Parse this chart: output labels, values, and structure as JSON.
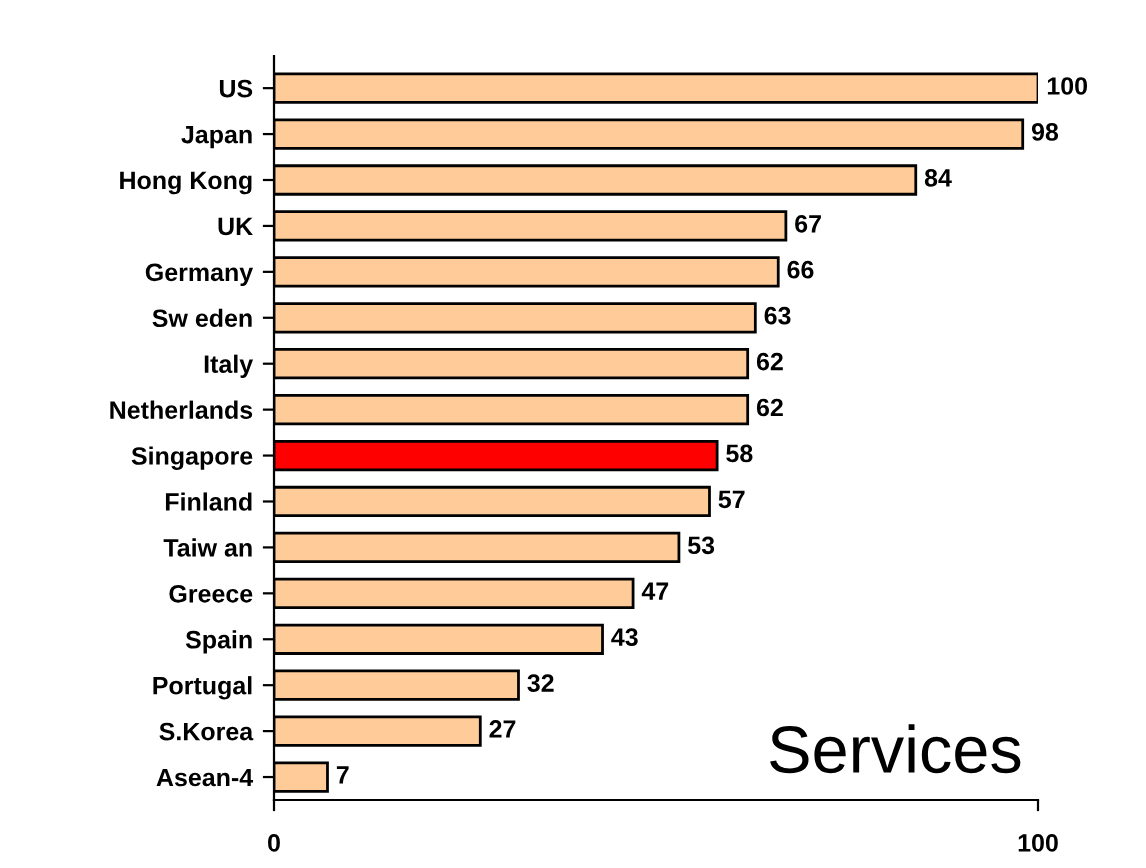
{
  "chart_data": {
    "type": "bar",
    "orientation": "horizontal",
    "categories": [
      "US",
      "Japan",
      "Hong Kong",
      "UK",
      "Germany",
      "Sw eden",
      "Italy",
      "Netherlands",
      "Singapore",
      "Finland",
      "Taiw an",
      "Greece",
      "Spain",
      "Portugal",
      "S.Korea",
      "Asean-4"
    ],
    "values": [
      100,
      98,
      84,
      67,
      66,
      63,
      62,
      62,
      58,
      57,
      53,
      47,
      43,
      32,
      27,
      7
    ],
    "colors": [
      "#ffcc99",
      "#ffcc99",
      "#ffcc99",
      "#ffcc99",
      "#ffcc99",
      "#ffcc99",
      "#ffcc99",
      "#ffcc99",
      "#ff0000",
      "#ffcc99",
      "#ffcc99",
      "#ffcc99",
      "#ffcc99",
      "#ffcc99",
      "#ffcc99",
      "#ffcc99"
    ],
    "xlim": [
      0,
      100
    ],
    "xticks": [
      0,
      100
    ],
    "data_labels": true,
    "grid": false,
    "legend": false,
    "annotations": [
      "Services"
    ]
  }
}
